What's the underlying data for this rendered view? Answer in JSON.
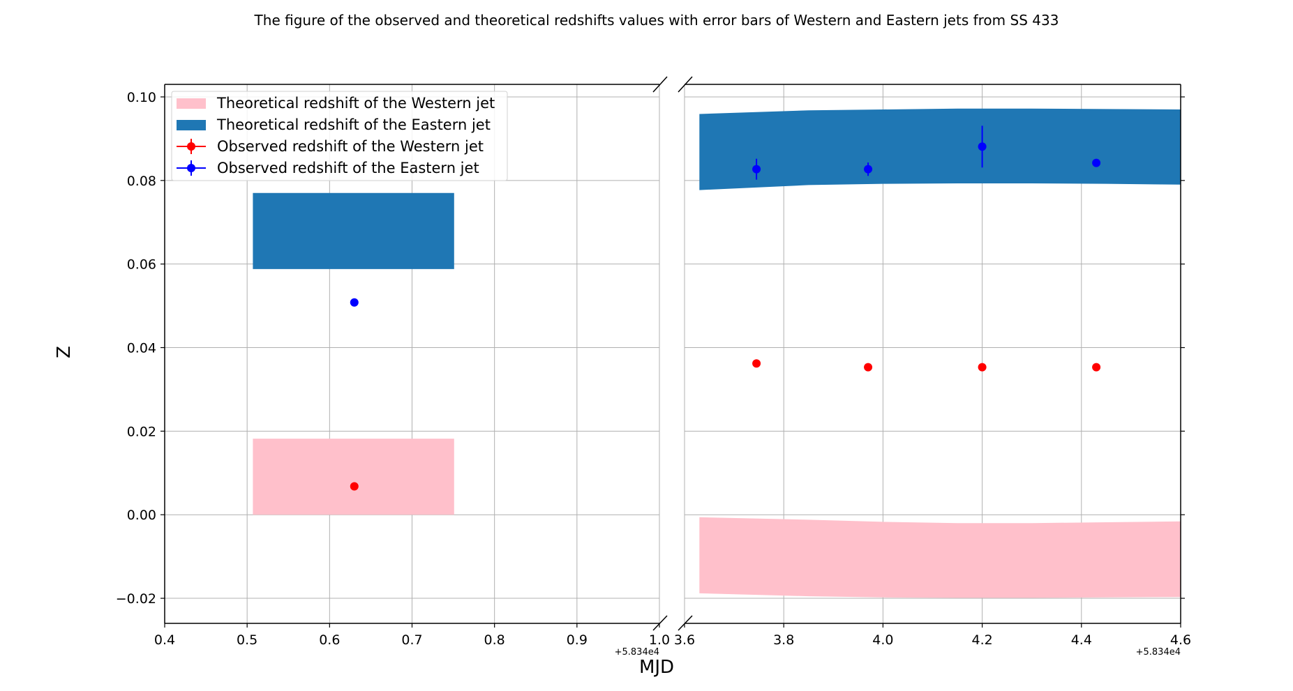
{
  "chart_data": {
    "type": "scatter",
    "title": "The figure of the observed and theoretical redshifts values with error bars of Western and Eastern jets from SS 433",
    "xlabel": "MJD",
    "ylabel": "Z",
    "ylim": [
      -0.026,
      0.103
    ],
    "yticks": [
      -0.02,
      0.0,
      0.02,
      0.04,
      0.06,
      0.08,
      0.1
    ],
    "ytick_labels": [
      "−0.02",
      "0.00",
      "0.02",
      "0.04",
      "0.06",
      "0.08",
      "0.10"
    ],
    "grid": true,
    "broken_x_axis": true,
    "legend_position": "upper-left",
    "legend": [
      {
        "label": "Theoretical redshift of the Western jet",
        "kind": "band",
        "color": "#ffc0cb"
      },
      {
        "label": "Theoretical redshift of the Eastern jet",
        "kind": "band",
        "color": "#1f77b4"
      },
      {
        "label": "Observed redshift of the Western jet",
        "kind": "errorbar",
        "color": "#ff0000"
      },
      {
        "label": "Observed redshift of the Eastern jet",
        "kind": "errorbar",
        "color": "#0000ff"
      }
    ],
    "panels": [
      {
        "xlim": [
          0.4,
          1.0
        ],
        "xticks": [
          0.4,
          0.5,
          0.6,
          0.7,
          0.8,
          0.9,
          1.0
        ],
        "xtick_labels": [
          "0.4",
          "0.5",
          "0.6",
          "0.7",
          "0.8",
          "0.9",
          "1.0"
        ],
        "offset_label": "+5.834e4",
        "western_band": {
          "x": [
            0.507,
            0.751
          ],
          "lower": [
            0.0,
            0.0
          ],
          "upper": [
            0.0182,
            0.0182
          ]
        },
        "eastern_band": {
          "x": [
            0.507,
            0.751
          ],
          "lower": [
            0.0588,
            0.0588
          ],
          "upper": [
            0.077,
            0.077
          ]
        },
        "western_observed": [
          {
            "x": 0.63,
            "y": 0.0068,
            "yerr": 0.0
          }
        ],
        "eastern_observed": [
          {
            "x": 0.63,
            "y": 0.0508,
            "yerr": 0.0
          }
        ]
      },
      {
        "xlim": [
          3.6,
          4.6
        ],
        "xticks": [
          3.6,
          3.8,
          4.0,
          4.2,
          4.4,
          4.6
        ],
        "xtick_labels": [
          "3.6",
          "3.8",
          "4.0",
          "4.2",
          "4.4",
          "4.6"
        ],
        "offset_label": "+5.834e4",
        "western_band": {
          "x": [
            3.63,
            3.85,
            4.0,
            4.15,
            4.3,
            4.45,
            4.6
          ],
          "lower": [
            -0.0188,
            -0.0195,
            -0.0198,
            -0.0199,
            -0.0199,
            -0.0198,
            -0.0197
          ],
          "upper": [
            -0.0006,
            -0.0012,
            -0.0017,
            -0.002,
            -0.002,
            -0.0018,
            -0.0016
          ]
        },
        "eastern_band": {
          "x": [
            3.63,
            3.85,
            4.0,
            4.15,
            4.3,
            4.45,
            4.6
          ],
          "lower": [
            0.0777,
            0.0789,
            0.0792,
            0.0793,
            0.0793,
            0.0792,
            0.079
          ],
          "upper": [
            0.0959,
            0.0968,
            0.097,
            0.0972,
            0.0972,
            0.0971,
            0.097
          ]
        },
        "western_observed": [
          {
            "x": 3.745,
            "y": 0.0362,
            "yerr": 0.0
          },
          {
            "x": 3.97,
            "y": 0.0353,
            "yerr": 0.0
          },
          {
            "x": 4.2,
            "y": 0.0353,
            "yerr": 0.0
          },
          {
            "x": 4.43,
            "y": 0.0353,
            "yerr": 0.0
          }
        ],
        "eastern_observed": [
          {
            "x": 3.745,
            "y": 0.0827,
            "yerr": 0.0025
          },
          {
            "x": 3.97,
            "y": 0.0827,
            "yerr": 0.0016
          },
          {
            "x": 4.2,
            "y": 0.0881,
            "yerr": 0.005
          },
          {
            "x": 4.43,
            "y": 0.0842,
            "yerr": 0.0
          }
        ]
      }
    ]
  }
}
